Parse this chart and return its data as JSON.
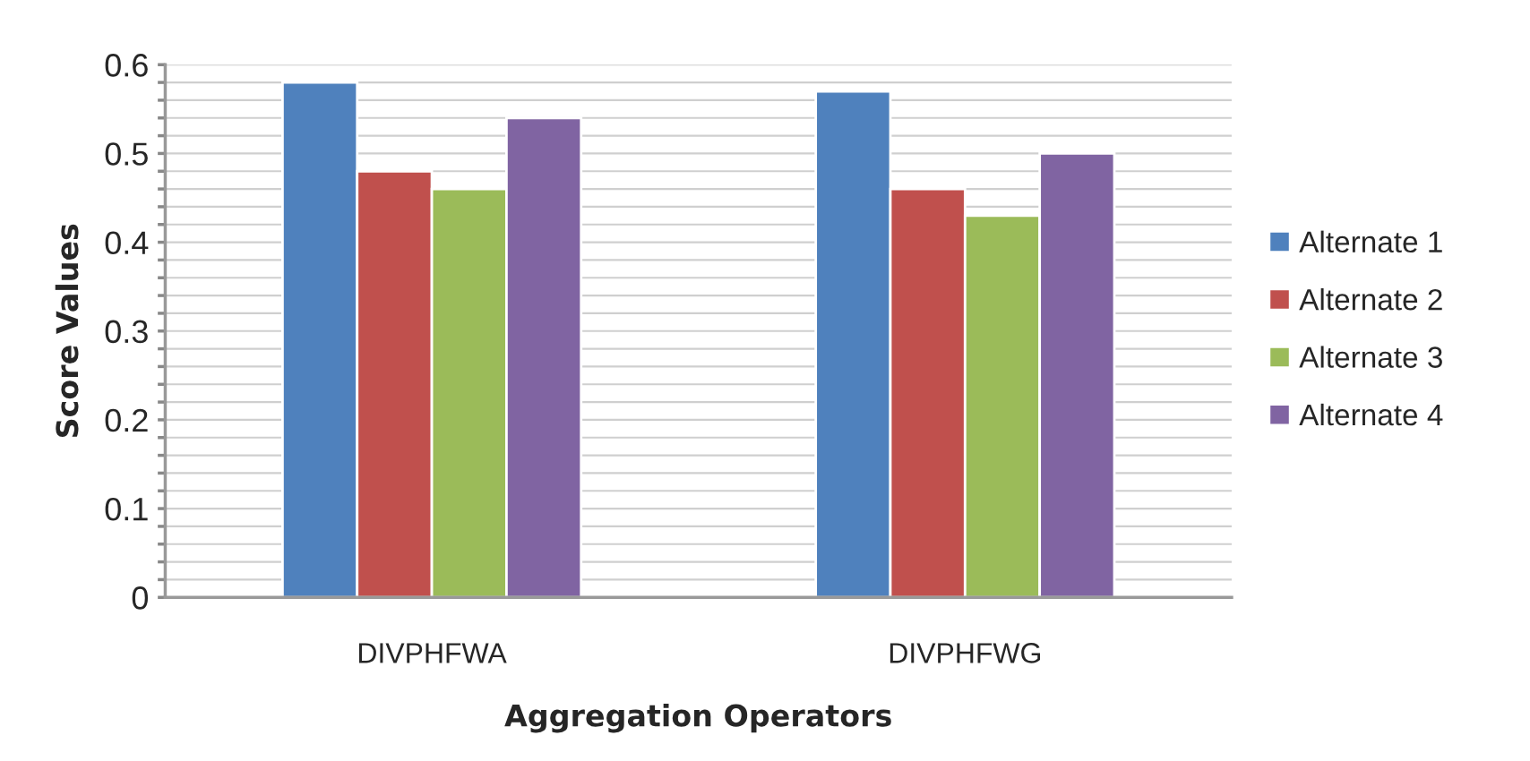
{
  "chart_data": {
    "type": "bar",
    "xlabel": "Aggregation Operators",
    "ylabel": "Score Values",
    "categories": [
      "DIVPHFWA",
      "DIVPHFWG"
    ],
    "series": [
      {
        "name": "Alternate 1",
        "color": "#4f81bd",
        "values": [
          0.58,
          0.57
        ]
      },
      {
        "name": "Alternate 2",
        "color": "#c0504d",
        "values": [
          0.48,
          0.46
        ]
      },
      {
        "name": "Alternate 3",
        "color": "#9bbb59",
        "values": [
          0.46,
          0.43
        ]
      },
      {
        "name": "Alternate 4",
        "color": "#8064a2",
        "values": [
          0.54,
          0.5
        ]
      }
    ],
    "ylim": [
      0,
      0.6
    ],
    "yticks": [
      0,
      {
        "value": 0.02,
        "label": null
      },
      {
        "value": 0.04,
        "label": null
      },
      {
        "value": 0.06,
        "label": null
      },
      {
        "value": 0.08,
        "label": null
      },
      0.1,
      {
        "value": 0.12,
        "label": null
      },
      {
        "value": 0.14,
        "label": null
      },
      {
        "value": 0.16,
        "label": null
      },
      {
        "value": 0.18,
        "label": null
      },
      0.2,
      {
        "value": 0.22,
        "label": null
      },
      {
        "value": 0.24,
        "label": null
      },
      {
        "value": 0.26,
        "label": null
      },
      {
        "value": 0.28,
        "label": null
      },
      0.3,
      {
        "value": 0.32,
        "label": null
      },
      {
        "value": 0.34,
        "label": null
      },
      {
        "value": 0.36,
        "label": null
      },
      {
        "value": 0.38,
        "label": null
      },
      0.4,
      {
        "value": 0.42,
        "label": null
      },
      {
        "value": 0.44,
        "label": null
      },
      {
        "value": 0.46,
        "label": null
      },
      {
        "value": 0.48,
        "label": null
      },
      0.5,
      {
        "value": 0.52,
        "label": null
      },
      {
        "value": 0.54,
        "label": null
      },
      {
        "value": 0.56,
        "label": null
      },
      {
        "value": 0.58,
        "label": null
      },
      0.6
    ],
    "grid": "y",
    "legend": "right"
  }
}
